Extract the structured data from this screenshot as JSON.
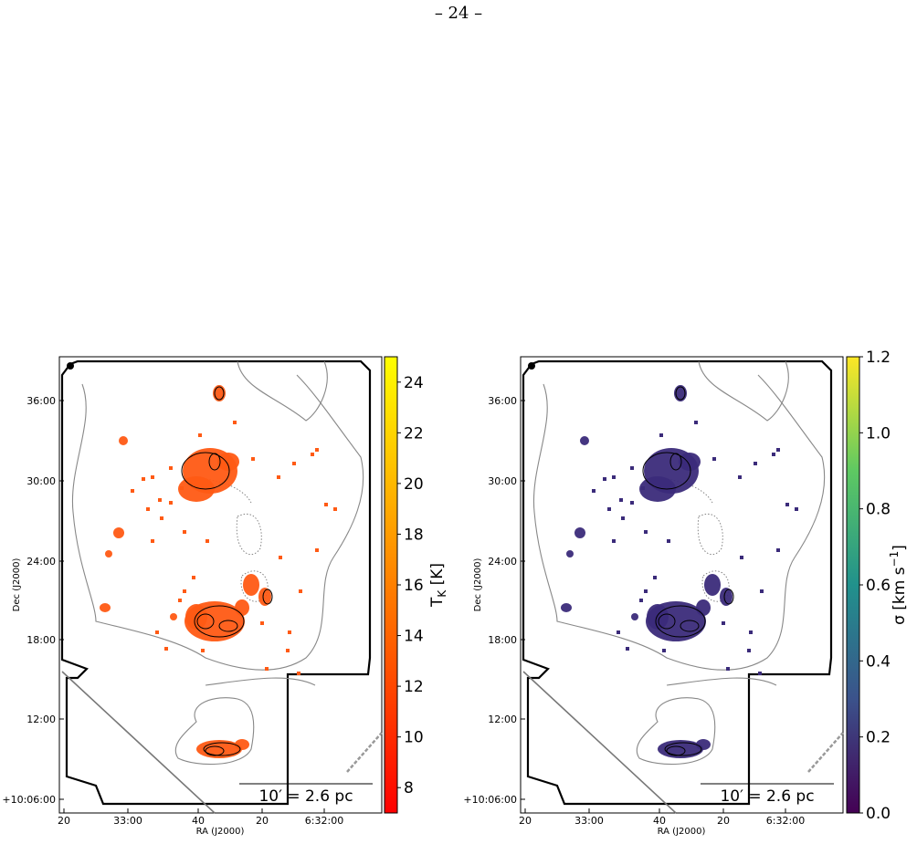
{
  "page_number": "– 24 –",
  "panels": [
    {
      "id": "temperature",
      "colorbar_label_main": "T",
      "colorbar_label_sub": "K",
      "colorbar_label_unit": " [K]",
      "colorbar_ticks": [
        "8",
        "10",
        "12",
        "14",
        "16",
        "18",
        "20",
        "22",
        "24"
      ],
      "colormap": "autumn",
      "colors": {
        "low": "#ff0000",
        "high": "#ffff00",
        "map_fill": "#ff5a14"
      }
    },
    {
      "id": "dispersion",
      "colorbar_label_main": "σ [km s",
      "colorbar_label_sup": "−1",
      "colorbar_label_end": "]",
      "colorbar_ticks": [
        "0.0",
        "0.2",
        "0.4",
        "0.6",
        "0.8",
        "1.0",
        "1.2"
      ],
      "colormap": "viridis",
      "colors": {
        "low": "#440154",
        "mid": "#21918c",
        "high": "#fde725",
        "map_fill": "#3b2b7a"
      }
    }
  ],
  "axes": {
    "xlabel": "RA (J2000)",
    "ylabel": "Dec (J2000)",
    "x_ticks": [
      "20",
      "33:00",
      "40",
      "20",
      "6:32:00"
    ],
    "y_ticks": [
      "36:00",
      "30:00",
      "24:00",
      "18:00",
      "12:00",
      "+10:06:00"
    ]
  },
  "scale_bar": {
    "label": "10′ = 2.6 pc"
  }
}
